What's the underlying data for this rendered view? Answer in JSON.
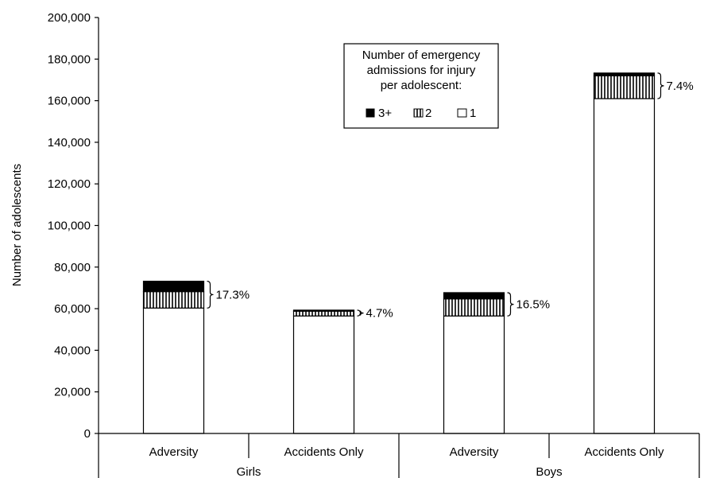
{
  "chart_data": {
    "type": "bar",
    "stacked": true,
    "ylabel": "Number of adolescents",
    "ylim": [
      0,
      200000
    ],
    "yticks": [
      "0",
      "20,000",
      "40,000",
      "60,000",
      "80,000",
      "100,000",
      "120,000",
      "140,000",
      "160,000",
      "180,000",
      "200,000"
    ],
    "ytick_values": [
      0,
      20000,
      40000,
      60000,
      80000,
      100000,
      120000,
      140000,
      160000,
      180000,
      200000
    ],
    "groups": [
      {
        "label": "Girls",
        "categories": [
          "Adversity",
          "Accidents Only"
        ]
      },
      {
        "label": "Boys",
        "categories": [
          "Adversity",
          "Accidents Only"
        ]
      }
    ],
    "categories": [
      "Adversity",
      "Accidents Only",
      "Adversity",
      "Accidents Only"
    ],
    "series": [
      {
        "name": "1",
        "values": [
          60300,
          56500,
          56500,
          161000
        ]
      },
      {
        "name": "2",
        "values": [
          7900,
          2300,
          8200,
          11000
        ]
      },
      {
        "name": "3+",
        "values": [
          5000,
          500,
          3000,
          1300
        ]
      }
    ],
    "bracket_labels": [
      "17.3%",
      "4.7%",
      "16.5%",
      "7.4%"
    ],
    "legend": {
      "title_lines": [
        "Number of emergency",
        "admissions for injury",
        "per adolescent:"
      ],
      "entries": [
        "3+",
        "2",
        "1"
      ],
      "position": "top-center"
    },
    "grid": false
  },
  "colors": {
    "series_1_fill": "#ffffff",
    "series_2_fill": "vertical-hatch",
    "series_3_fill": "#000000",
    "axis": "#000000"
  }
}
